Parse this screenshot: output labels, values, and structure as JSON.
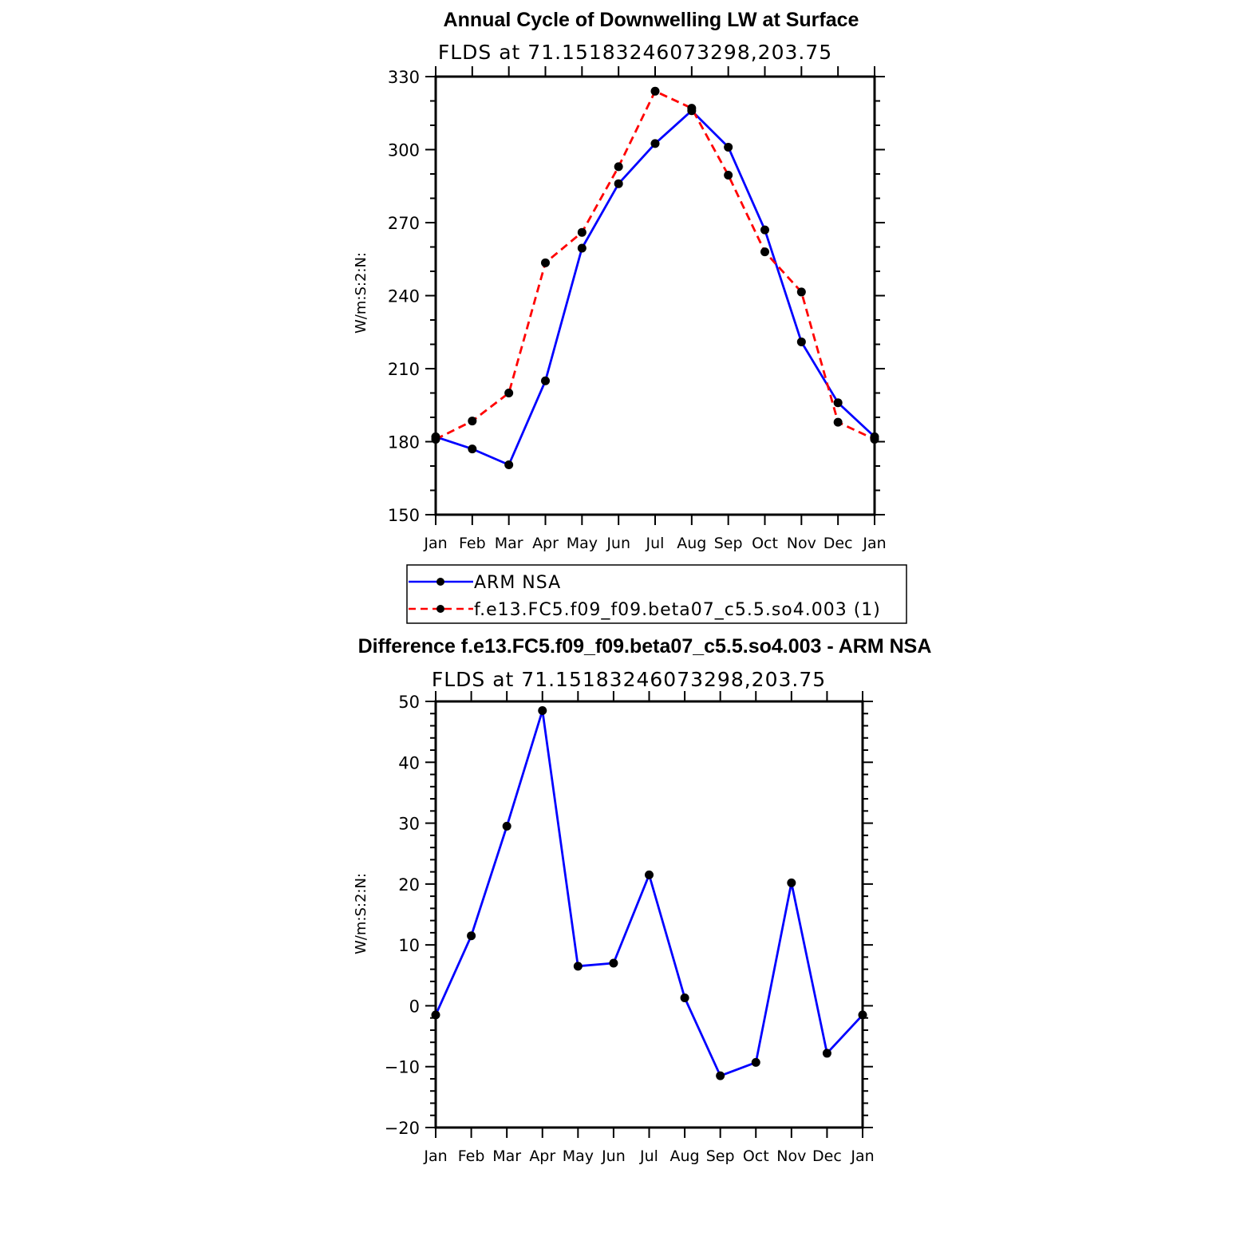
{
  "chart_data": [
    {
      "type": "line",
      "title": "Annual Cycle of Downwelling LW at Surface",
      "subtitle": "FLDS at 71.15183246073298,203.75",
      "ylabel": "W/m:S:2:N:",
      "xlabel": "",
      "ylim": [
        150,
        330
      ],
      "yticks": [
        "150",
        "180",
        "210",
        "240",
        "270",
        "300",
        "330"
      ],
      "categories": [
        "Jan",
        "Feb",
        "Mar",
        "Apr",
        "May",
        "Jun",
        "Jul",
        "Aug",
        "Sep",
        "Oct",
        "Nov",
        "Dec",
        "Jan"
      ],
      "series": [
        {
          "name": "ARM NSA",
          "color": "#0000ff",
          "dash": "solid",
          "values": [
            182,
            177,
            170.5,
            205,
            259.5,
            286,
            302.5,
            316,
            301,
            267,
            221,
            196,
            182
          ]
        },
        {
          "name": "f.e13.FC5.f09_f09.beta07_c5.5.so4.003 (1)",
          "color": "#ff0000",
          "dash": "dashed",
          "values": [
            181,
            188.5,
            200,
            253.5,
            266,
            293,
            324,
            317,
            289.5,
            258,
            241.5,
            188,
            181
          ]
        }
      ],
      "legend_position": "below"
    },
    {
      "type": "line",
      "title": "Difference f.e13.FC5.f09_f09.beta07_c5.5.so4.003 - ARM NSA",
      "subtitle": "FLDS at 71.15183246073298,203.75",
      "ylabel": "W/m:S:2:N:",
      "xlabel": "",
      "ylim": [
        -20,
        50
      ],
      "yticks": [
        "−20",
        "−10",
        "0",
        "10",
        "20",
        "30",
        "40",
        "50"
      ],
      "categories": [
        "Jan",
        "Feb",
        "Mar",
        "Apr",
        "May",
        "Jun",
        "Jul",
        "Aug",
        "Sep",
        "Oct",
        "Nov",
        "Dec",
        "Jan"
      ],
      "series": [
        {
          "name": "Difference",
          "color": "#0000ff",
          "dash": "solid",
          "values": [
            -1.5,
            11.5,
            29.5,
            48.5,
            6.5,
            7,
            21.5,
            1.3,
            -11.5,
            -9.3,
            20.2,
            -7.8,
            -1.5
          ]
        }
      ]
    }
  ]
}
